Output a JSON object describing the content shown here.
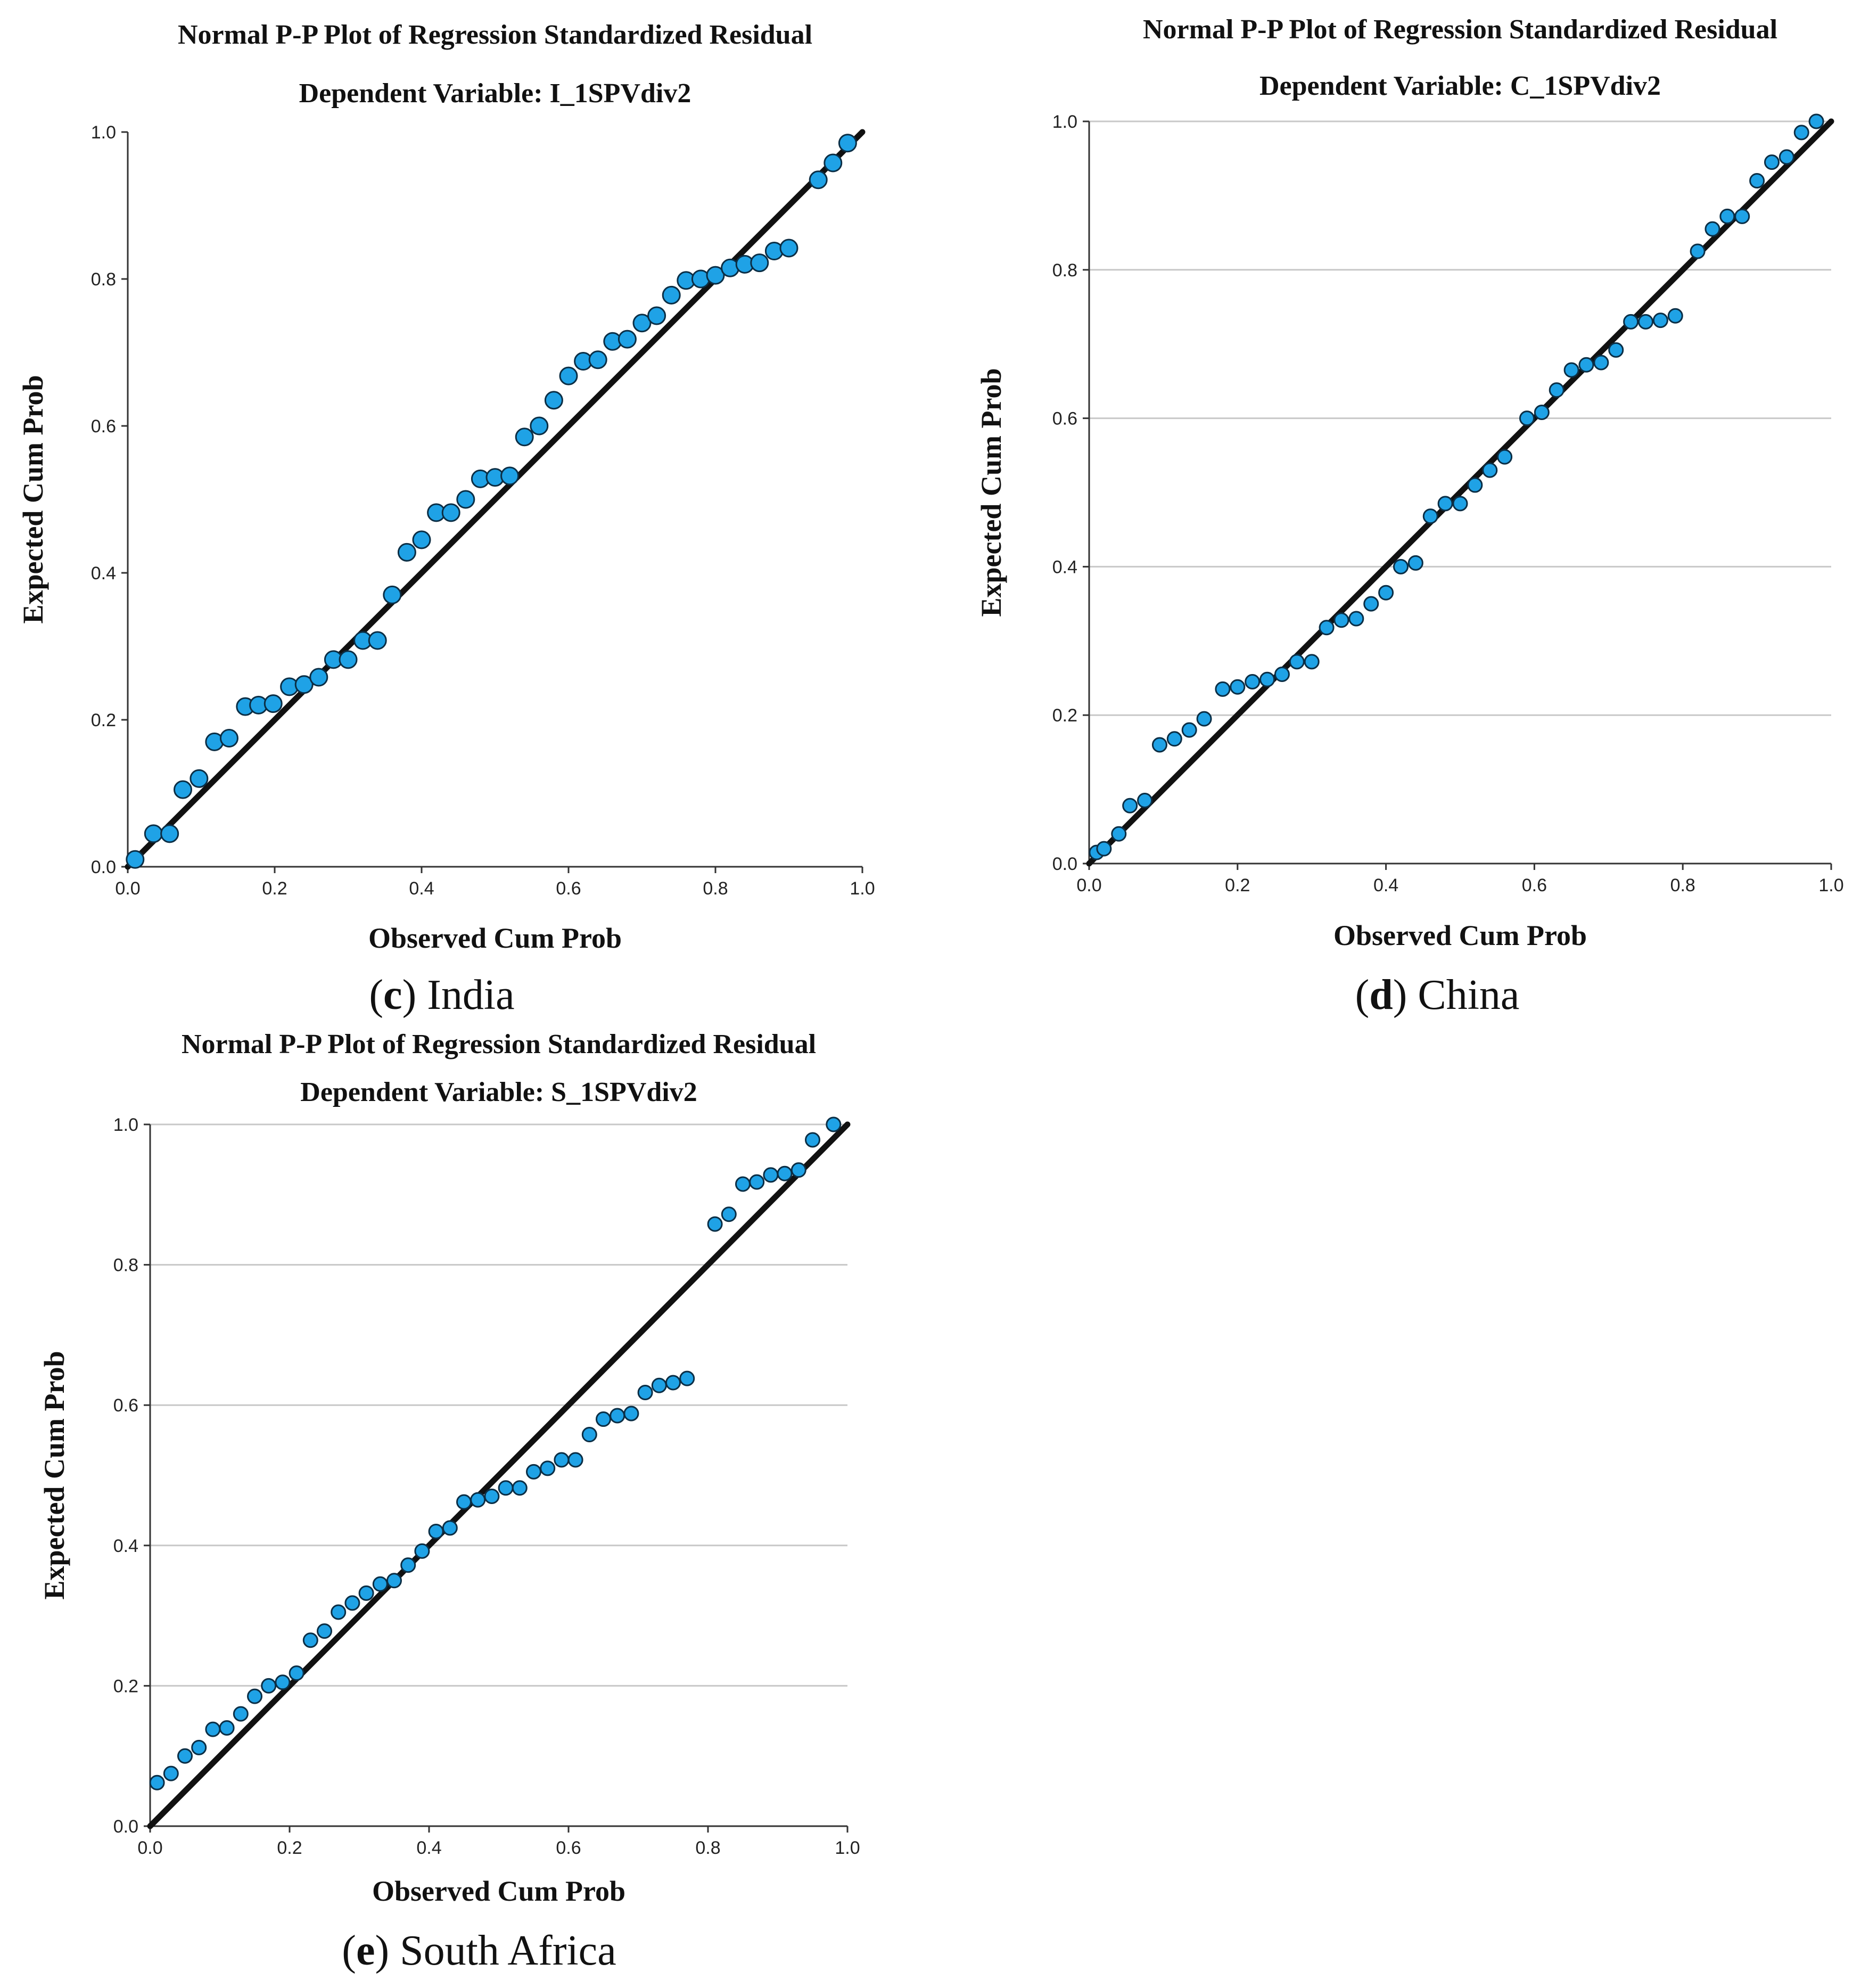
{
  "chart_data": [
    {
      "type": "scatter",
      "title": "Normal P-P Plot of Regression Standardized Residual",
      "subtitle": "Dependent Variable: I_1SPVdiv2",
      "xlabel": "Observed Cum Prob",
      "ylabel": "Expected Cum Prob",
      "xlim": [
        0,
        1
      ],
      "ylim": [
        0,
        1
      ],
      "xticks": [
        "0.0",
        "0.2",
        "0.4",
        "0.6",
        "0.8",
        "1.0"
      ],
      "yticks": [
        "0.0",
        "0.2",
        "0.4",
        "0.6",
        "0.8",
        "1.0"
      ],
      "grid": false,
      "reference_line": [
        [
          0,
          0
        ],
        [
          1,
          1
        ]
      ],
      "caption_letter": "c",
      "caption_text": " India",
      "series": [
        {
          "name": "residuals",
          "points": [
            [
              0.01,
              0.01
            ],
            [
              0.035,
              0.045
            ],
            [
              0.057,
              0.045
            ],
            [
              0.075,
              0.105
            ],
            [
              0.097,
              0.12
            ],
            [
              0.118,
              0.17
            ],
            [
              0.138,
              0.175
            ],
            [
              0.16,
              0.218
            ],
            [
              0.178,
              0.22
            ],
            [
              0.198,
              0.222
            ],
            [
              0.22,
              0.245
            ],
            [
              0.24,
              0.248
            ],
            [
              0.26,
              0.258
            ],
            [
              0.28,
              0.282
            ],
            [
              0.3,
              0.282
            ],
            [
              0.32,
              0.308
            ],
            [
              0.34,
              0.308
            ],
            [
              0.36,
              0.37
            ],
            [
              0.38,
              0.428
            ],
            [
              0.4,
              0.445
            ],
            [
              0.42,
              0.482
            ],
            [
              0.44,
              0.482
            ],
            [
              0.46,
              0.5
            ],
            [
              0.48,
              0.528
            ],
            [
              0.5,
              0.53
            ],
            [
              0.52,
              0.532
            ],
            [
              0.54,
              0.585
            ],
            [
              0.56,
              0.6
            ],
            [
              0.58,
              0.635
            ],
            [
              0.6,
              0.668
            ],
            [
              0.62,
              0.688
            ],
            [
              0.64,
              0.69
            ],
            [
              0.66,
              0.715
            ],
            [
              0.68,
              0.718
            ],
            [
              0.7,
              0.74
            ],
            [
              0.72,
              0.75
            ],
            [
              0.74,
              0.778
            ],
            [
              0.76,
              0.798
            ],
            [
              0.78,
              0.8
            ],
            [
              0.8,
              0.805
            ],
            [
              0.82,
              0.815
            ],
            [
              0.84,
              0.82
            ],
            [
              0.86,
              0.822
            ],
            [
              0.88,
              0.838
            ],
            [
              0.9,
              0.842
            ],
            [
              0.94,
              0.935
            ],
            [
              0.96,
              0.958
            ],
            [
              0.98,
              0.985
            ]
          ]
        }
      ]
    },
    {
      "type": "scatter",
      "title": "Normal P-P Plot of Regression Standardized Residual",
      "subtitle": "Dependent Variable: C_1SPVdiv2",
      "xlabel": "Observed Cum Prob",
      "ylabel": "Expected Cum Prob",
      "xlim": [
        0,
        1
      ],
      "ylim": [
        0,
        1
      ],
      "xticks": [
        "0.0",
        "0.2",
        "0.4",
        "0.6",
        "0.8",
        "1.0"
      ],
      "yticks": [
        "0.0",
        "0.2",
        "0.4",
        "0.6",
        "0.8",
        "1.0"
      ],
      "grid": true,
      "reference_line": [
        [
          0,
          0
        ],
        [
          1,
          1
        ]
      ],
      "caption_letter": "d",
      "caption_text": " China",
      "series": [
        {
          "name": "residuals",
          "points": [
            [
              0.01,
              0.015
            ],
            [
              0.02,
              0.02
            ],
            [
              0.04,
              0.04
            ],
            [
              0.055,
              0.078
            ],
            [
              0.075,
              0.085
            ],
            [
              0.095,
              0.16
            ],
            [
              0.115,
              0.168
            ],
            [
              0.135,
              0.18
            ],
            [
              0.155,
              0.195
            ],
            [
              0.18,
              0.235
            ],
            [
              0.2,
              0.238
            ],
            [
              0.22,
              0.245
            ],
            [
              0.24,
              0.248
            ],
            [
              0.26,
              0.255
            ],
            [
              0.28,
              0.272
            ],
            [
              0.3,
              0.272
            ],
            [
              0.32,
              0.318
            ],
            [
              0.34,
              0.328
            ],
            [
              0.36,
              0.33
            ],
            [
              0.38,
              0.35
            ],
            [
              0.4,
              0.365
            ],
            [
              0.42,
              0.4
            ],
            [
              0.44,
              0.405
            ],
            [
              0.46,
              0.468
            ],
            [
              0.48,
              0.485
            ],
            [
              0.5,
              0.485
            ],
            [
              0.52,
              0.51
            ],
            [
              0.54,
              0.53
            ],
            [
              0.56,
              0.548
            ],
            [
              0.59,
              0.6
            ],
            [
              0.61,
              0.608
            ],
            [
              0.63,
              0.638
            ],
            [
              0.65,
              0.665
            ],
            [
              0.67,
              0.672
            ],
            [
              0.69,
              0.675
            ],
            [
              0.71,
              0.692
            ],
            [
              0.73,
              0.73
            ],
            [
              0.75,
              0.73
            ],
            [
              0.77,
              0.732
            ],
            [
              0.79,
              0.738
            ],
            [
              0.82,
              0.825
            ],
            [
              0.84,
              0.855
            ],
            [
              0.86,
              0.872
            ],
            [
              0.88,
              0.872
            ],
            [
              0.9,
              0.92
            ],
            [
              0.92,
              0.945
            ],
            [
              0.94,
              0.952
            ],
            [
              0.96,
              0.985
            ],
            [
              0.98,
              1.0
            ]
          ]
        }
      ]
    },
    {
      "type": "scatter",
      "title": "Normal P-P Plot of Regression Standardized Residual",
      "subtitle": "Dependent Variable: S_1SPVdiv2",
      "xlabel": "Observed Cum Prob",
      "ylabel": "Expected Cum Prob",
      "xlim": [
        0,
        1
      ],
      "ylim": [
        0,
        1
      ],
      "xticks": [
        "0.0",
        "0.2",
        "0.4",
        "0.6",
        "0.8",
        "1.0"
      ],
      "yticks": [
        "0.0",
        "0.2",
        "0.4",
        "0.6",
        "0.8",
        "1.0"
      ],
      "grid": true,
      "reference_line": [
        [
          0,
          0
        ],
        [
          1,
          1
        ]
      ],
      "caption_letter": "e",
      "caption_text": " South Africa",
      "series": [
        {
          "name": "residuals",
          "points": [
            [
              0.01,
              0.062
            ],
            [
              0.03,
              0.075
            ],
            [
              0.05,
              0.1
            ],
            [
              0.07,
              0.112
            ],
            [
              0.09,
              0.138
            ],
            [
              0.11,
              0.14
            ],
            [
              0.13,
              0.16
            ],
            [
              0.15,
              0.185
            ],
            [
              0.17,
              0.2
            ],
            [
              0.19,
              0.205
            ],
            [
              0.21,
              0.218
            ],
            [
              0.23,
              0.265
            ],
            [
              0.25,
              0.278
            ],
            [
              0.27,
              0.305
            ],
            [
              0.29,
              0.318
            ],
            [
              0.31,
              0.332
            ],
            [
              0.33,
              0.345
            ],
            [
              0.35,
              0.35
            ],
            [
              0.37,
              0.372
            ],
            [
              0.39,
              0.392
            ],
            [
              0.41,
              0.42
            ],
            [
              0.43,
              0.425
            ],
            [
              0.45,
              0.462
            ],
            [
              0.47,
              0.465
            ],
            [
              0.49,
              0.47
            ],
            [
              0.51,
              0.482
            ],
            [
              0.53,
              0.482
            ],
            [
              0.55,
              0.505
            ],
            [
              0.57,
              0.51
            ],
            [
              0.59,
              0.522
            ],
            [
              0.61,
              0.522
            ],
            [
              0.63,
              0.558
            ],
            [
              0.65,
              0.58
            ],
            [
              0.67,
              0.585
            ],
            [
              0.69,
              0.588
            ],
            [
              0.71,
              0.618
            ],
            [
              0.73,
              0.628
            ],
            [
              0.75,
              0.632
            ],
            [
              0.77,
              0.638
            ],
            [
              0.81,
              0.858
            ],
            [
              0.83,
              0.872
            ],
            [
              0.85,
              0.915
            ],
            [
              0.87,
              0.918
            ],
            [
              0.89,
              0.928
            ],
            [
              0.91,
              0.93
            ],
            [
              0.93,
              0.935
            ],
            [
              0.95,
              0.978
            ],
            [
              0.98,
              1.0
            ]
          ]
        }
      ]
    }
  ]
}
